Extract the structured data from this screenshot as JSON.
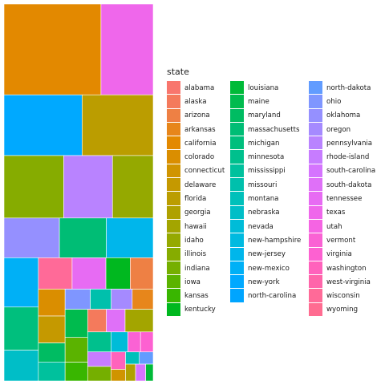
{
  "chart_data": {
    "type": "treemap",
    "title": "",
    "legend": {
      "title": "state",
      "position": "right",
      "entries": [
        {
          "name": "alabama",
          "color": "#F8766D"
        },
        {
          "name": "alaska",
          "color": "#F47A5C"
        },
        {
          "name": "arizona",
          "color": "#EE8044"
        },
        {
          "name": "arkansas",
          "color": "#E7861B"
        },
        {
          "name": "california",
          "color": "#E38900"
        },
        {
          "name": "colorado",
          "color": "#DA8E00"
        },
        {
          "name": "connecticut",
          "color": "#D09400"
        },
        {
          "name": "delaware",
          "color": "#C59900"
        },
        {
          "name": "florida",
          "color": "#BB9D00"
        },
        {
          "name": "georgia",
          "color": "#AFA100"
        },
        {
          "name": "hawaii",
          "color": "#A3A500"
        },
        {
          "name": "idaho",
          "color": "#95A900"
        },
        {
          "name": "illinois",
          "color": "#86AC00"
        },
        {
          "name": "indiana",
          "color": "#75AF00"
        },
        {
          "name": "iowa",
          "color": "#5BB300"
        },
        {
          "name": "kansas",
          "color": "#39B600"
        },
        {
          "name": "kentucky",
          "color": "#00B81F"
        },
        {
          "name": "louisiana",
          "color": "#00BA38"
        },
        {
          "name": "maine",
          "color": "#00BB4E"
        },
        {
          "name": "maryland",
          "color": "#00BC62"
        },
        {
          "name": "massachusetts",
          "color": "#00BD75"
        },
        {
          "name": "michigan",
          "color": "#00BF7D"
        },
        {
          "name": "minnesota",
          "color": "#00C08D"
        },
        {
          "name": "mississippi",
          "color": "#00C19D"
        },
        {
          "name": "missouri",
          "color": "#00C0AC"
        },
        {
          "name": "montana",
          "color": "#00C0BA"
        },
        {
          "name": "nebraska",
          "color": "#00BEC7"
        },
        {
          "name": "nevada",
          "color": "#00BCD8"
        },
        {
          "name": "new-hampshire",
          "color": "#00BAE0"
        },
        {
          "name": "new-jersey",
          "color": "#00B6EB"
        },
        {
          "name": "new-mexico",
          "color": "#00B0F6"
        },
        {
          "name": "new-york",
          "color": "#00A9FF"
        },
        {
          "name": "north-carolina",
          "color": "#00A5FF"
        },
        {
          "name": "north-dakota",
          "color": "#619CFF"
        },
        {
          "name": "ohio",
          "color": "#7F96FF"
        },
        {
          "name": "oklahoma",
          "color": "#9590FF"
        },
        {
          "name": "oregon",
          "color": "#A58AFF"
        },
        {
          "name": "pennsylvania",
          "color": "#B983FF"
        },
        {
          "name": "rhode-island",
          "color": "#C77CFF"
        },
        {
          "name": "south-carolina",
          "color": "#D574FE"
        },
        {
          "name": "south-dakota",
          "color": "#DF70F8"
        },
        {
          "name": "tennessee",
          "color": "#E76BF3"
        },
        {
          "name": "texas",
          "color": "#EF67EB"
        },
        {
          "name": "utah",
          "color": "#F564E3"
        },
        {
          "name": "vermont",
          "color": "#FA62D4"
        },
        {
          "name": "virginia",
          "color": "#FD61D1"
        },
        {
          "name": "washington",
          "color": "#FF62BC"
        },
        {
          "name": "west-virginia",
          "color": "#FF65AA"
        },
        {
          "name": "wisconsin",
          "color": "#FF6A98"
        },
        {
          "name": "wyoming",
          "color": "#FF6C91"
        }
      ]
    },
    "cells": [
      {
        "state": "california",
        "value": 10.4
      },
      {
        "state": "texas",
        "value": 5.6
      },
      {
        "state": "new-york",
        "value": 5.6
      },
      {
        "state": "florida",
        "value": 5.1
      },
      {
        "state": "illinois",
        "value": 4.4
      },
      {
        "state": "pennsylvania",
        "value": 3.6
      },
      {
        "state": "idaho",
        "value": 3.0
      },
      {
        "state": "oklahoma",
        "value": 2.6
      },
      {
        "state": "massachusetts",
        "value": 2.2
      },
      {
        "state": "new-jersey",
        "value": 2.2
      },
      {
        "state": "new-mexico",
        "value": 2.0
      },
      {
        "state": "michigan",
        "value": 1.75
      },
      {
        "state": "nebraska",
        "value": 1.25
      },
      {
        "state": "wisconsin",
        "value": 1.25
      },
      {
        "state": "tennessee",
        "value": 1.25
      },
      {
        "state": "kentucky",
        "value": 0.9
      },
      {
        "state": "arizona",
        "value": 0.85
      },
      {
        "state": "colorado",
        "value": 0.85
      },
      {
        "state": "delaware",
        "value": 0.85
      },
      {
        "state": "maryland",
        "value": 0.6
      },
      {
        "state": "mississippi",
        "value": 0.6
      },
      {
        "state": "ohio",
        "value": 0.6
      },
      {
        "state": "missouri",
        "value": 0.5
      },
      {
        "state": "oregon",
        "value": 0.5
      },
      {
        "state": "arkansas",
        "value": 0.5
      },
      {
        "state": "maine",
        "value": 0.75
      },
      {
        "state": "iowa",
        "value": 0.66
      },
      {
        "state": "kansas",
        "value": 0.5
      },
      {
        "state": "alaska",
        "value": 0.5
      },
      {
        "state": "south-dakota",
        "value": 0.5
      },
      {
        "state": "hawaii",
        "value": 0.75
      },
      {
        "state": "minnesota",
        "value": 0.55
      },
      {
        "state": "rhode-island",
        "value": 0.4
      },
      {
        "state": "indiana",
        "value": 0.4
      },
      {
        "state": "nevada",
        "value": 0.4
      },
      {
        "state": "vermont",
        "value": 0.3
      },
      {
        "state": "virginia",
        "value": 0.3
      },
      {
        "state": "washington",
        "value": 0.3
      },
      {
        "state": "connecticut",
        "value": 0.2
      },
      {
        "state": "montana",
        "value": 0.2
      },
      {
        "state": "north-dakota",
        "value": 0.2
      },
      {
        "state": "georgia",
        "value": 0.2
      },
      {
        "state": "south-carolina",
        "value": 0.2
      },
      {
        "state": "louisiana",
        "value": 0.15
      }
    ]
  }
}
